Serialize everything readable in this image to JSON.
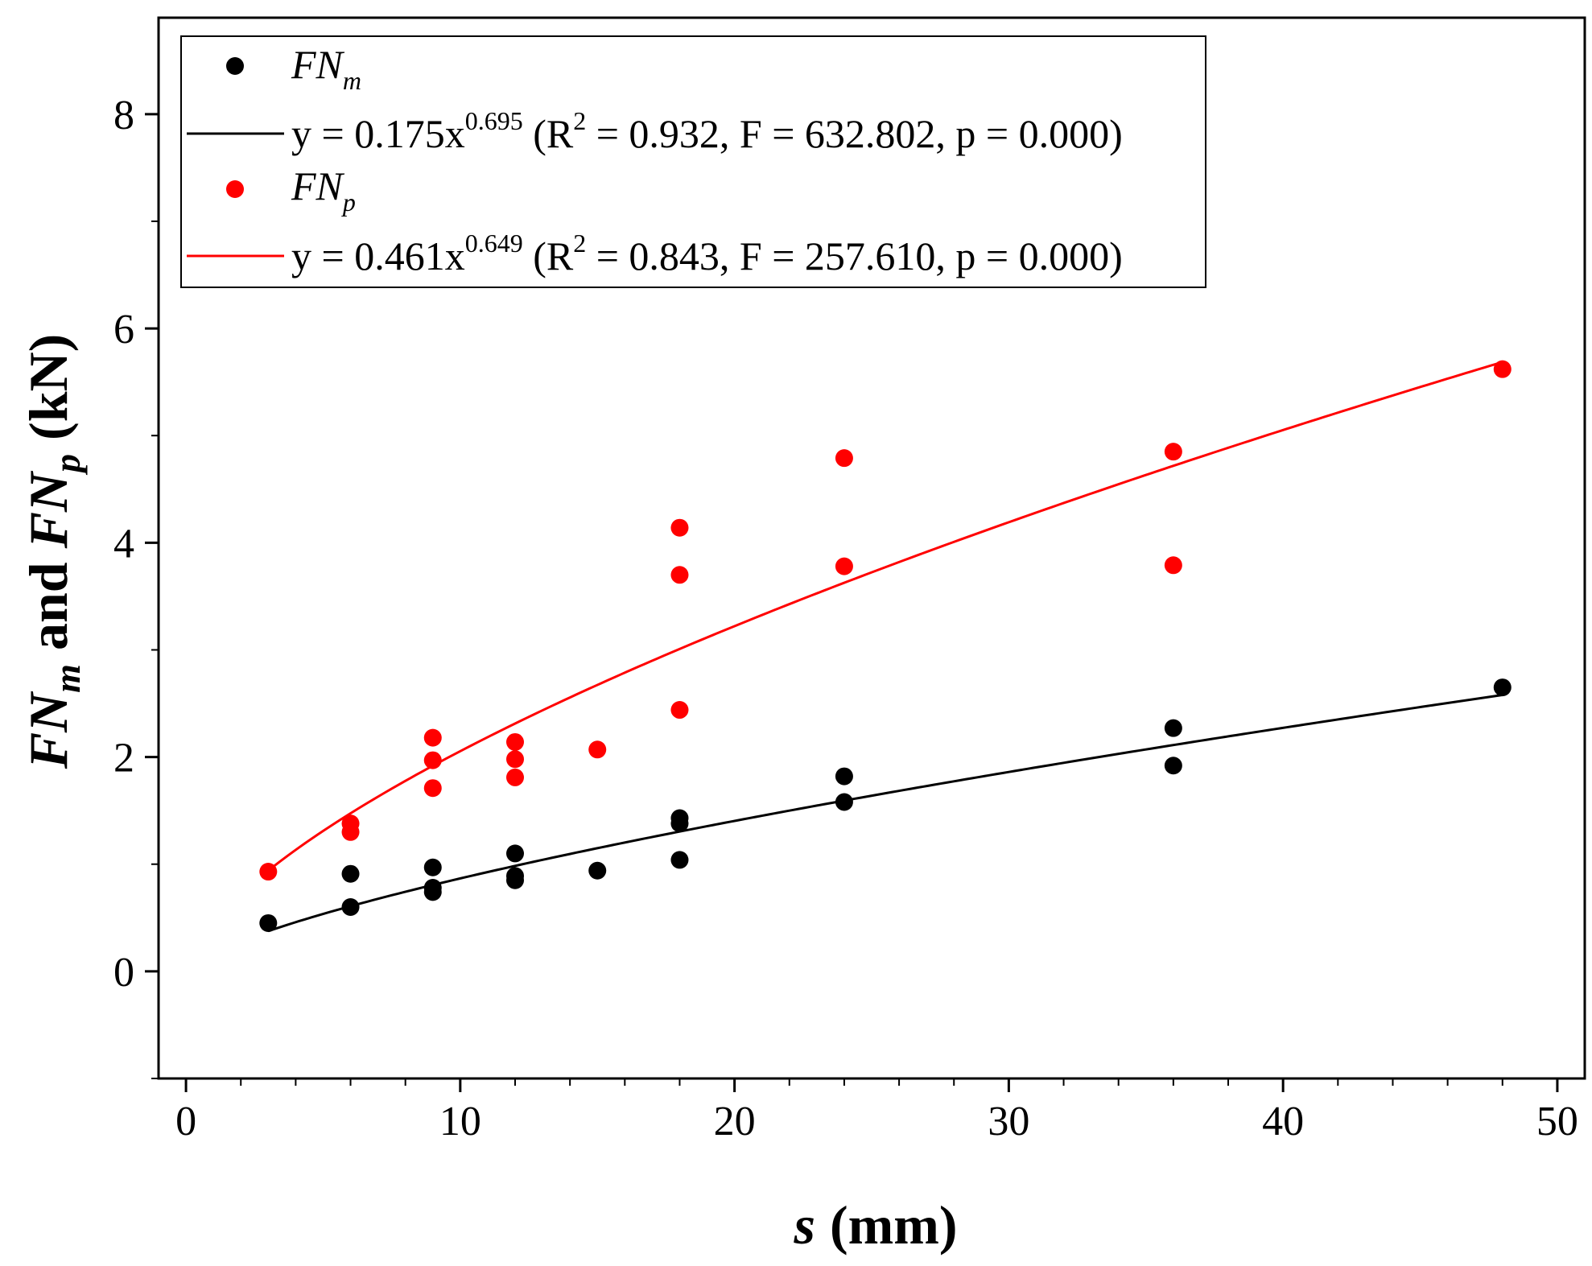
{
  "chart_data": {
    "type": "scatter",
    "xlabel": {
      "var": "s",
      "unit": "(mm)"
    },
    "ylabel": {
      "p1": "FN",
      "p1sub": "m",
      "p2": " and ",
      "p3": "FN",
      "p3sub": "p",
      "p4": " (kN)"
    },
    "xlim": [
      -1,
      51
    ],
    "ylim": [
      -1,
      8.9
    ],
    "xticks": [
      0,
      10,
      20,
      30,
      40,
      50
    ],
    "yticks": [
      0,
      2,
      4,
      6,
      8
    ],
    "x_minor_step": 2,
    "y_minor_step": 1,
    "series": [
      {
        "name": "FN_m",
        "label_main": "FN",
        "label_sub": "m",
        "color": "#000000",
        "points": [
          [
            3,
            0.45
          ],
          [
            6,
            0.6
          ],
          [
            6,
            0.91
          ],
          [
            9,
            0.74
          ],
          [
            9,
            0.78
          ],
          [
            9,
            0.97
          ],
          [
            12,
            0.85
          ],
          [
            12,
            0.89
          ],
          [
            12,
            1.1
          ],
          [
            15,
            0.94
          ],
          [
            18,
            1.04
          ],
          [
            18,
            1.38
          ],
          [
            18,
            1.43
          ],
          [
            24,
            1.58
          ],
          [
            24,
            1.82
          ],
          [
            36,
            1.92
          ],
          [
            36,
            2.27
          ],
          [
            48,
            2.65
          ]
        ],
        "fit": {
          "a": 0.175,
          "b": 0.695,
          "prefix": "y = 0.175x",
          "exp": "0.695",
          "stats_pre": " (R",
          "r2_exp": "2",
          "stats_post": " = 0.932, F = 632.802, p = 0.000)"
        }
      },
      {
        "name": "FN_p",
        "label_main": "FN",
        "label_sub": "p",
        "color": "#ff0000",
        "points": [
          [
            3,
            0.93
          ],
          [
            6,
            1.3
          ],
          [
            6,
            1.38
          ],
          [
            9,
            1.71
          ],
          [
            9,
            1.97
          ],
          [
            9,
            2.18
          ],
          [
            12,
            1.81
          ],
          [
            12,
            1.98
          ],
          [
            12,
            2.14
          ],
          [
            15,
            2.07
          ],
          [
            18,
            2.44
          ],
          [
            18,
            3.7
          ],
          [
            18,
            4.14
          ],
          [
            24,
            3.78
          ],
          [
            24,
            4.79
          ],
          [
            36,
            3.79
          ],
          [
            36,
            4.85
          ],
          [
            48,
            5.62
          ]
        ],
        "fit": {
          "a": 0.461,
          "b": 0.649,
          "prefix": "y = 0.461x",
          "exp": "0.649",
          "stats_pre": " (R",
          "r2_exp": "2",
          "stats_post": " = 0.843, F = 257.610, p = 0.000)"
        }
      }
    ],
    "fit_range": [
      3,
      48
    ],
    "legend_position": "top-left"
  }
}
